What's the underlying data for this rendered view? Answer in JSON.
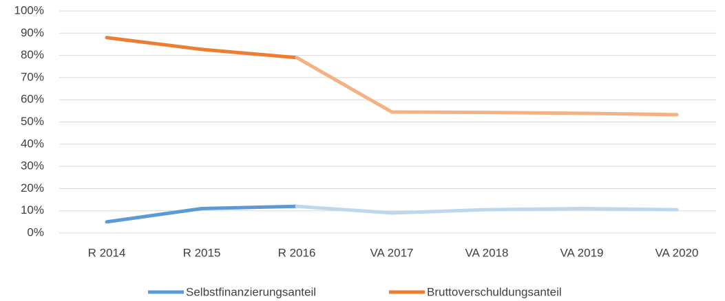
{
  "chart_data": {
    "type": "line",
    "categories": [
      "R 2014",
      "R 2015",
      "R 2016",
      "VA 2017",
      "VA 2018",
      "VA 2019",
      "VA 2020"
    ],
    "series": [
      {
        "name": "Selbstfinanzierungsanteil",
        "color": "#5b9bd5",
        "segment_colors": [
          "#5b9bd5",
          "#5b9bd5",
          "#bdd7ee",
          "#bdd7ee",
          "#bdd7ee",
          "#bdd7ee"
        ],
        "values": [
          5,
          11,
          12,
          9,
          10.5,
          11,
          10.5
        ]
      },
      {
        "name": "Bruttoverschuldungsanteil",
        "color": "#ed7d31",
        "segment_colors": [
          "#ed7d31",
          "#ed7d31",
          "#f4b183",
          "#f4b183",
          "#f4b183",
          "#f4b183"
        ],
        "values": [
          88,
          82.7,
          79,
          54.5,
          54.3,
          53.9,
          53.3
        ]
      }
    ],
    "ylim": [
      0,
      100
    ],
    "yticks": [
      {
        "value": 0,
        "label": "0%"
      },
      {
        "value": 10,
        "label": "10%"
      },
      {
        "value": 20,
        "label": "20%"
      },
      {
        "value": 30,
        "label": "30%"
      },
      {
        "value": 40,
        "label": "40%"
      },
      {
        "value": 50,
        "label": "50%"
      },
      {
        "value": 60,
        "label": "60%"
      },
      {
        "value": 70,
        "label": "70%"
      },
      {
        "value": 80,
        "label": "80%"
      },
      {
        "value": 90,
        "label": "90%"
      },
      {
        "value": 100,
        "label": "100%"
      }
    ],
    "grid": true,
    "legend": "bottom"
  }
}
